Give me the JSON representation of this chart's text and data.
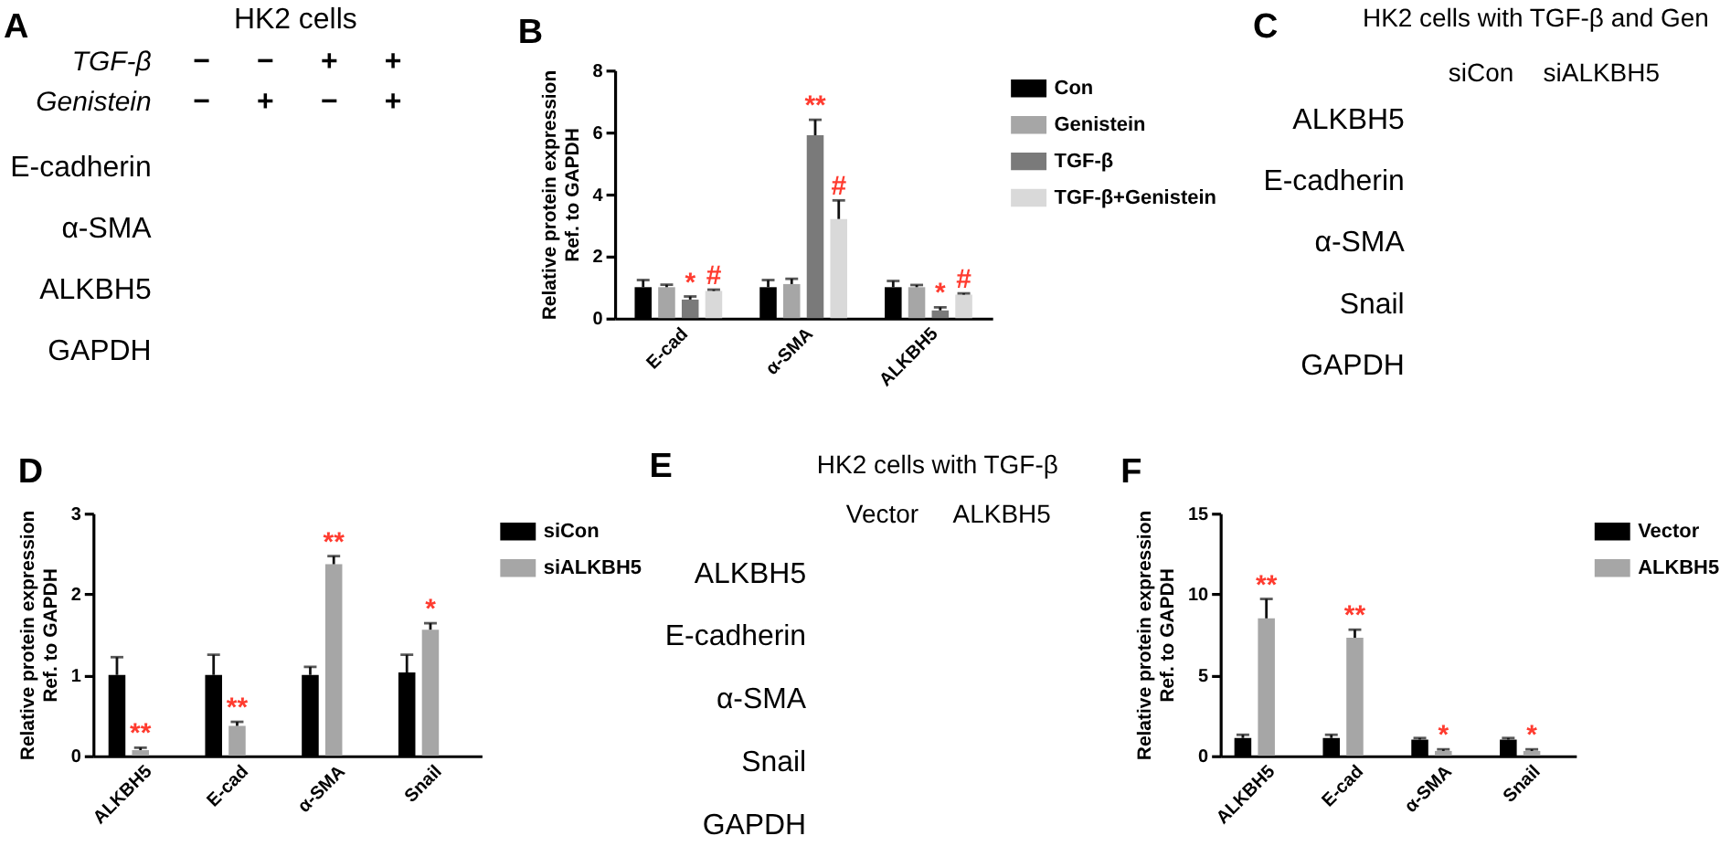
{
  "chart_data": [
    {
      "type": "other",
      "title": "A",
      "subtitle": "HK2 cells",
      "categories": [
        null,
        null,
        null,
        null
      ],
      "annotations": [
        "TGF-β",
        "−",
        "−",
        "+",
        "+",
        "Genistein",
        "−",
        "+",
        "−",
        "+"
      ],
      "y_categories": [
        "E-cadherin",
        "α-SMA",
        "ALKBH5",
        "GAPDH"
      ]
    },
    {
      "type": "bar",
      "title": "B",
      "ylabel": "Relative protein expression\nRef. to GAPDH",
      "categories": [
        "E-cad",
        "α-SMA",
        "ALKBH5"
      ],
      "series": [
        {
          "name": "Con",
          "color": "#000000",
          "values": [
            1.0,
            1.0,
            1.0
          ],
          "errors": [
            [
              1.0,
              1.23
            ],
            [
              1.0,
              1.23
            ],
            [
              1.0,
              1.2
            ]
          ]
        },
        {
          "name": "Genistein",
          "color": "#a6a6a6",
          "values": [
            1.0,
            1.1,
            1.0
          ],
          "errors": [
            [
              1.0,
              1.08
            ],
            [
              1.1,
              1.27
            ],
            [
              1.0,
              1.07
            ]
          ]
        },
        {
          "name": "TGF-β",
          "color": "#7a7a7a",
          "values": [
            0.6,
            5.9,
            0.25
          ],
          "errors": [
            [
              0.6,
              0.7
            ],
            [
              5.9,
              6.4
            ],
            [
              0.25,
              0.35
            ]
          ],
          "value_labels": [
            "*",
            "**",
            "*"
          ]
        },
        {
          "name": "TGF-β+Genistein",
          "color": "#d9d9d9",
          "values": [
            0.88,
            3.2,
            0.76
          ],
          "errors": [
            [
              0.88,
              0.92
            ],
            [
              3.2,
              3.8
            ],
            [
              0.76,
              0.8
            ]
          ],
          "value_labels": [
            "#",
            "#",
            "#"
          ]
        }
      ],
      "ylim": [
        0,
        8
      ],
      "yticks": [
        0,
        2,
        4,
        6,
        8
      ],
      "legend": "right"
    },
    {
      "type": "other",
      "title": "C",
      "subtitle": "HK2 cells with TGF-β and Gen",
      "categories": [
        "siCon",
        "siALKBH5"
      ],
      "y_categories": [
        "ALKBH5",
        "E-cadherin",
        "α-SMA",
        "Snail",
        "GAPDH"
      ]
    },
    {
      "type": "bar",
      "title": "D",
      "ylabel": "Relative protein expression\nRef. to GAPDH",
      "categories": [
        "ALKBH5",
        "E-cad",
        "α-SMA",
        "Snail"
      ],
      "series": [
        {
          "name": "siCon",
          "color": "#000000",
          "values": [
            1.0,
            1.0,
            1.0,
            1.03
          ],
          "errors": [
            [
              1.0,
              1.22
            ],
            [
              1.0,
              1.25
            ],
            [
              1.0,
              1.1
            ],
            [
              1.03,
              1.25
            ]
          ]
        },
        {
          "name": "siALKBH5",
          "color": "#a6a6a6",
          "values": [
            0.07,
            0.37,
            2.37,
            1.56
          ],
          "errors": [
            [
              0.07,
              0.1
            ],
            [
              0.37,
              0.42
            ],
            [
              2.37,
              2.47
            ],
            [
              1.56,
              1.64
            ]
          ],
          "value_labels": [
            "**",
            "**",
            "**",
            "*"
          ]
        }
      ],
      "ylim": [
        0,
        3
      ],
      "yticks": [
        0,
        1,
        2,
        3
      ],
      "legend": "right"
    },
    {
      "type": "other",
      "title": "E",
      "subtitle": "HK2 cells with TGF-β",
      "categories": [
        "Vector",
        "ALKBH5"
      ],
      "y_categories": [
        "ALKBH5",
        "E-cadherin",
        "α-SMA",
        "Snail",
        "GAPDH"
      ]
    },
    {
      "type": "bar",
      "title": "F",
      "ylabel": "Relative protein expression\nRef. to GAPDH",
      "categories": [
        "ALKBH5",
        "E-cad",
        "α-SMA",
        "Snail"
      ],
      "series": [
        {
          "name": "Vector",
          "color": "#000000",
          "values": [
            1.1,
            1.1,
            1.0,
            1.0
          ],
          "errors": [
            [
              1.1,
              1.3
            ],
            [
              1.1,
              1.3
            ],
            [
              1.0,
              1.1
            ],
            [
              1.0,
              1.1
            ]
          ]
        },
        {
          "name": "ALKBH5",
          "color": "#a6a6a6",
          "values": [
            8.5,
            7.3,
            0.3,
            0.3
          ],
          "errors": [
            [
              8.5,
              9.7
            ],
            [
              7.3,
              7.8
            ],
            [
              0.3,
              0.4
            ],
            [
              0.3,
              0.4
            ]
          ],
          "value_labels": [
            "**",
            "**",
            "*",
            "*"
          ]
        }
      ],
      "ylim": [
        0,
        15
      ],
      "yticks": [
        0,
        5,
        10,
        15
      ],
      "legend": "right"
    }
  ]
}
